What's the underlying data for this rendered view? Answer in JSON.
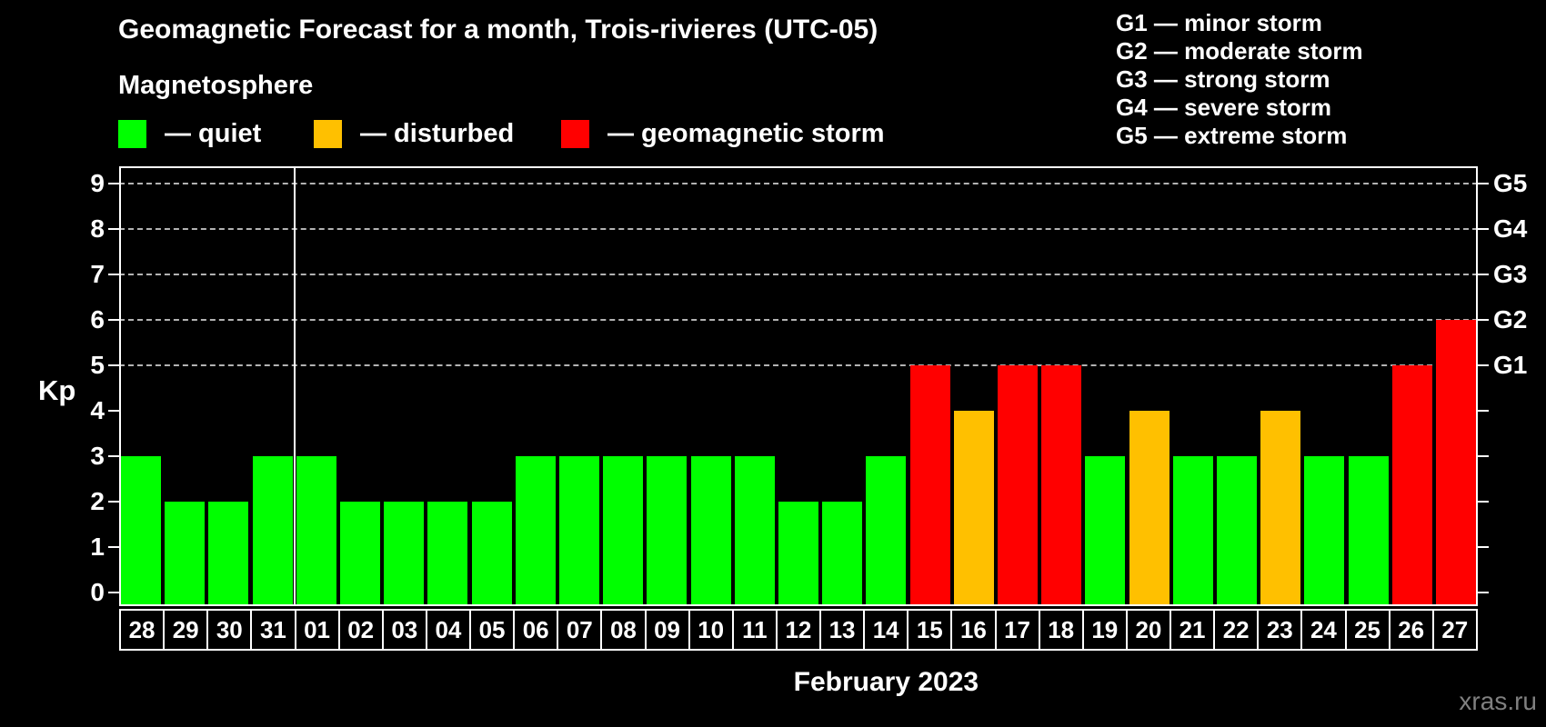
{
  "title": "Geomagnetic Forecast for a month, Trois-rivieres (UTC-05)",
  "subtitle": "Magnetosphere",
  "legend": [
    {
      "name": "quiet",
      "text": "— quiet",
      "color": "#00ff00"
    },
    {
      "name": "disturbed",
      "text": "— disturbed",
      "color": "#ffc000"
    },
    {
      "name": "storm",
      "text": "— geomagnetic storm",
      "color": "#ff0000"
    }
  ],
  "g_legend": [
    "G1 — minor storm",
    "G2 — moderate storm",
    "G3 — strong storm",
    "G4 — severe storm",
    "G5 — extreme storm"
  ],
  "y_axis_label": "Kp",
  "x_axis_title": "February 2023",
  "watermark": "xras.ru",
  "chart_data": {
    "type": "bar",
    "title": "Geomagnetic Forecast for a month, Trois-rivieres (UTC-05)",
    "xlabel": "February 2023",
    "ylabel": "Kp",
    "ylim": [
      0,
      9
    ],
    "grid": "dashed horizontal lines at Kp 5-9 only",
    "categories": [
      "28",
      "29",
      "30",
      "31",
      "01",
      "02",
      "03",
      "04",
      "05",
      "06",
      "07",
      "08",
      "09",
      "10",
      "11",
      "12",
      "13",
      "14",
      "15",
      "16",
      "17",
      "18",
      "19",
      "20",
      "21",
      "22",
      "23",
      "24",
      "25",
      "26",
      "27"
    ],
    "values": [
      3,
      2,
      2,
      3,
      3,
      2,
      2,
      2,
      2,
      3,
      3,
      3,
      3,
      3,
      3,
      2,
      2,
      3,
      5,
      4,
      5,
      5,
      3,
      4,
      3,
      3,
      4,
      3,
      3,
      5,
      6
    ],
    "kp_ticks": [
      0,
      1,
      2,
      3,
      4,
      5,
      6,
      7,
      8,
      9
    ],
    "gridline_kps": [
      5,
      6,
      7,
      8,
      9
    ],
    "g_labels": [
      {
        "kp": 5,
        "label": "G1"
      },
      {
        "kp": 6,
        "label": "G2"
      },
      {
        "kp": 7,
        "label": "G3"
      },
      {
        "kp": 8,
        "label": "G4"
      },
      {
        "kp": 9,
        "label": "G5"
      }
    ],
    "month_separator_after_category": "31",
    "color_rule": {
      "quiet_kp_max": 3,
      "disturbed_kp": 4,
      "storm_kp_min": 5
    },
    "colors": {
      "quiet": "#00ff00",
      "disturbed": "#ffc000",
      "storm": "#ff0000",
      "grid": "#b3b3b3",
      "axis": "#ffffff",
      "text": "#ffffff",
      "watermark": "#808080",
      "background": "#000000"
    }
  }
}
